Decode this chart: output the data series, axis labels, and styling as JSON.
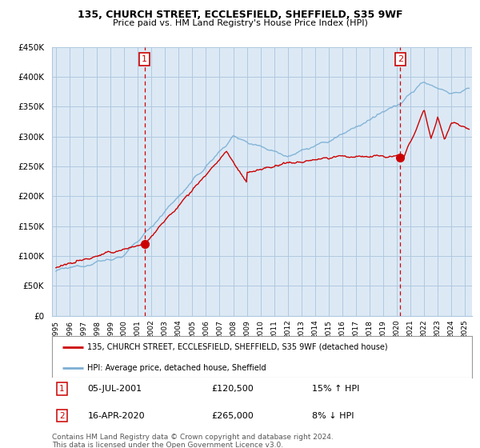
{
  "title": "135, CHURCH STREET, ECCLESFIELD, SHEFFIELD, S35 9WF",
  "subtitle": "Price paid vs. HM Land Registry's House Price Index (HPI)",
  "ylabel_ticks": [
    "£0",
    "£50K",
    "£100K",
    "£150K",
    "£200K",
    "£250K",
    "£300K",
    "£350K",
    "£400K",
    "£450K"
  ],
  "ylim": [
    0,
    450000
  ],
  "xlim_start": 1994.7,
  "xlim_end": 2025.5,
  "legend_line1": "135, CHURCH STREET, ECCLESFIELD, SHEFFIELD, S35 9WF (detached house)",
  "legend_line2": "HPI: Average price, detached house, Sheffield",
  "annotation1_label": "1",
  "annotation1_date": "05-JUL-2001",
  "annotation1_price": "£120,500",
  "annotation1_hpi": "15% ↑ HPI",
  "annotation2_label": "2",
  "annotation2_date": "16-APR-2020",
  "annotation2_price": "£265,000",
  "annotation2_hpi": "8% ↓ HPI",
  "footer": "Contains HM Land Registry data © Crown copyright and database right 2024.\nThis data is licensed under the Open Government Licence v3.0.",
  "sale1_x": 2001.5,
  "sale1_y": 120500,
  "sale2_x": 2020.25,
  "sale2_y": 265000,
  "line_color_red": "#cc0000",
  "line_color_blue": "#7bafd4",
  "chart_bg_color": "#dce9f5",
  "vline_color": "#cc0000",
  "annotation_box_color": "#cc0000",
  "grid_color": "#b0c8e0",
  "background_color": "#ffffff"
}
